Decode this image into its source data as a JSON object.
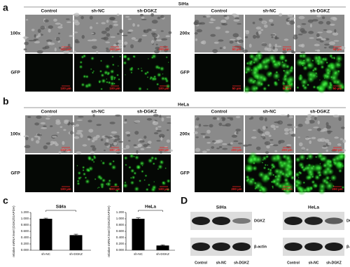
{
  "panels": {
    "a": {
      "label": "a",
      "cell_line": "SiHa",
      "columns": [
        "Control",
        "sh-NC",
        "sh-DGKZ"
      ],
      "rows_left": [
        "100x",
        "GFP"
      ],
      "rows_right": [
        "200x",
        "GFP"
      ],
      "scale_left": "100 µm",
      "scale_right": "50 µm"
    },
    "b": {
      "label": "b",
      "cell_line": "HeLa",
      "columns": [
        "Control",
        "sh-NC",
        "sh-DGKZ"
      ],
      "rows_left": [
        "100x",
        "GFP"
      ],
      "rows_right": [
        "200x",
        "GFP"
      ],
      "scale_left": "100 µm",
      "scale_right": "200 µm"
    },
    "c": {
      "label": "c"
    },
    "d": {
      "label": "D",
      "blots": [
        {
          "title": "SiHa",
          "lanes": [
            "Control",
            "sh-NC",
            "sh-DGKZ"
          ],
          "proteins": [
            "DGKZ",
            "β-actin"
          ]
        },
        {
          "title": "HeLa",
          "lanes": [
            "Control",
            "sh-NC",
            "sh-DGKZ"
          ],
          "proteins": [
            "DGKZ",
            "β-actin"
          ]
        }
      ]
    }
  },
  "chart_data": [
    {
      "type": "bar",
      "title": "SiHa",
      "ylabel": "relative mRNA level (DGKZ/GAPDH)",
      "categories": [
        "sh-NC",
        "sh-DGKZ"
      ],
      "values": [
        1.0,
        0.48
      ],
      "errors": [
        0.02,
        0.03
      ],
      "color": "#000000",
      "annotation": "**",
      "ylim": [
        0,
        1.2
      ],
      "yticks": [
        {
          "value": 0,
          "label": "0.000"
        },
        {
          "value": 0.2,
          "label": "0.200"
        },
        {
          "value": 0.4,
          "label": "0.400"
        },
        {
          "value": 0.6,
          "label": "0.600"
        },
        {
          "value": 0.8,
          "label": "0.800"
        },
        {
          "value": 1.0,
          "label": "1.000"
        },
        {
          "value": 1.2,
          "label": "1.200"
        }
      ]
    },
    {
      "type": "bar",
      "title": "HeLa",
      "ylabel": "relative mRNA level (DGKZ/GAPDH)",
      "categories": [
        "sh-NC",
        "sh-DGKZ"
      ],
      "values": [
        1.0,
        0.15
      ],
      "errors": [
        0.03,
        0.02
      ],
      "color": "#000000",
      "annotation": "**",
      "ylim": [
        0,
        1.2
      ],
      "yticks": [
        {
          "value": 0,
          "label": "0.000"
        },
        {
          "value": 0.2,
          "label": "0.200"
        },
        {
          "value": 0.4,
          "label": "0.400"
        },
        {
          "value": 0.6,
          "label": "0.600"
        },
        {
          "value": 0.8,
          "label": "0.800"
        },
        {
          "value": 1.0,
          "label": "1.000"
        },
        {
          "value": 1.2,
          "label": "1.200"
        }
      ]
    }
  ]
}
